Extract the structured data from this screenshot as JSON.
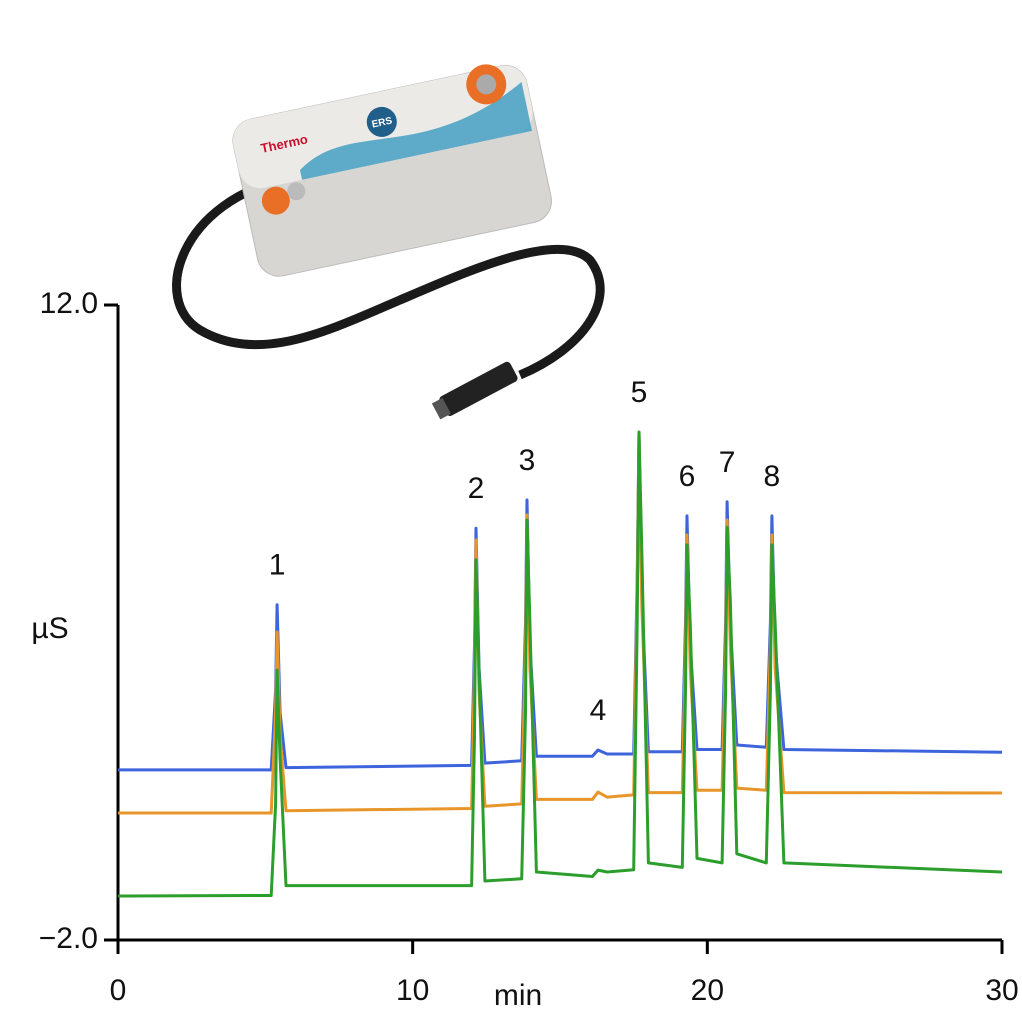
{
  "chart_data": {
    "type": "line",
    "x_label": "min",
    "y_label": "µS",
    "xlim": [
      0,
      30
    ],
    "xticks": [
      0,
      10,
      20,
      30
    ],
    "ylim": [
      -2,
      12
    ],
    "yticks": [
      {
        "value": 12,
        "label": "12.0"
      },
      {
        "value": -2,
        "label": "−2.0"
      }
    ],
    "x": [
      0,
      5.2,
      5.35,
      5.4,
      5.5,
      5.7,
      12.0,
      12.1,
      12.15,
      12.25,
      12.45,
      13.7,
      13.83,
      13.88,
      13.98,
      14.2,
      16.1,
      16.29,
      16.6,
      17.5,
      17.62,
      17.68,
      17.78,
      18.0,
      19.15,
      19.26,
      19.31,
      19.42,
      19.65,
      20.5,
      20.62,
      20.67,
      20.78,
      21.0,
      22.0,
      22.14,
      22.19,
      22.3,
      22.6,
      30
    ],
    "series": [
      {
        "color": "#3d64dc",
        "values": [
          1.75,
          1.75,
          3.5,
          5.39,
          3.0,
          1.8,
          1.85,
          4.5,
          7.08,
          4.0,
          1.9,
          1.95,
          5.0,
          7.7,
          4.5,
          2.05,
          2.05,
          2.19,
          2.1,
          2.1,
          6.0,
          9.18,
          5.5,
          2.15,
          2.15,
          5.0,
          7.35,
          4.5,
          2.2,
          2.2,
          5.0,
          7.66,
          5.0,
          2.3,
          2.25,
          5.0,
          7.35,
          4.5,
          2.2,
          2.14
        ]
      },
      {
        "color": "#e8962a",
        "values": [
          0.8,
          0.8,
          3.0,
          4.79,
          2.5,
          0.85,
          0.9,
          4.0,
          6.82,
          3.5,
          0.95,
          1.0,
          4.5,
          7.37,
          4.0,
          1.1,
          1.1,
          1.26,
          1.15,
          1.2,
          5.8,
          9.18,
          5.3,
          1.25,
          1.25,
          4.5,
          6.93,
          4.0,
          1.3,
          1.3,
          4.5,
          7.26,
          4.5,
          1.35,
          1.3,
          4.5,
          6.93,
          4.0,
          1.25,
          1.24
        ]
      },
      {
        "color": "#2c9e2c",
        "values": [
          -1.03,
          -1.02,
          1.0,
          3.95,
          2.0,
          -0.8,
          -0.8,
          2.5,
          6.38,
          4.0,
          -0.7,
          -0.65,
          3.0,
          7.26,
          5.0,
          -0.5,
          -0.6,
          -0.46,
          -0.5,
          -0.45,
          5.0,
          9.2,
          6.5,
          -0.3,
          -0.4,
          3.5,
          6.71,
          5.0,
          -0.2,
          -0.3,
          3.5,
          7.1,
          5.5,
          -0.1,
          -0.3,
          3.5,
          6.71,
          5.0,
          -0.3,
          -0.5
        ]
      }
    ],
    "annotations": [
      {
        "text": "1",
        "x": 5.4
      },
      {
        "text": "2",
        "x": 12.15
      },
      {
        "text": "3",
        "x": 13.88
      },
      {
        "text": "4",
        "x": 16.29
      },
      {
        "text": "5",
        "x": 17.68
      },
      {
        "text": "6",
        "x": 19.31
      },
      {
        "text": "7",
        "x": 20.67
      },
      {
        "text": "8",
        "x": 22.19
      }
    ]
  },
  "device": {
    "brand": "Thermo",
    "label": "ERS"
  }
}
